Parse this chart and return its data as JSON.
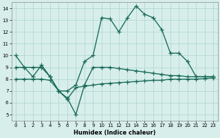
{
  "xlabel": "Humidex (Indice chaleur)",
  "xlim": [
    -0.5,
    23.5
  ],
  "ylim": [
    4.5,
    14.5
  ],
  "xticks": [
    0,
    1,
    2,
    3,
    4,
    5,
    6,
    7,
    8,
    9,
    10,
    11,
    12,
    13,
    14,
    15,
    16,
    17,
    18,
    19,
    20,
    21,
    22,
    23
  ],
  "yticks": [
    5,
    6,
    7,
    8,
    9,
    10,
    11,
    12,
    13,
    14
  ],
  "background_color": "#d7eeeb",
  "grid_color": "#b2d8d2",
  "line_color": "#1a6b5a",
  "curve1_y": [
    10.0,
    9.0,
    8.2,
    9.2,
    8.2,
    7.0,
    7.0,
    7.5,
    9.5,
    10.0,
    13.2,
    13.1,
    12.0,
    13.2,
    14.2,
    13.5,
    13.2,
    12.2,
    10.2,
    10.2,
    9.5,
    8.2,
    8.2,
    8.2
  ],
  "curve2_y": [
    9.0,
    9.0,
    9.0,
    9.0,
    8.2,
    7.0,
    6.4,
    5.0,
    7.5,
    9.0,
    9.0,
    9.0,
    8.9,
    8.8,
    8.7,
    8.6,
    8.5,
    8.4,
    8.3,
    8.3,
    8.2,
    8.2,
    8.2,
    8.2
  ],
  "curve3_y": [
    8.0,
    8.0,
    8.0,
    8.0,
    7.9,
    7.0,
    6.3,
    7.3,
    7.4,
    7.5,
    7.6,
    7.65,
    7.7,
    7.75,
    7.8,
    7.85,
    7.9,
    7.9,
    8.0,
    8.0,
    8.0,
    8.0,
    8.05,
    8.1
  ],
  "markersize": 4,
  "linewidth": 1.0
}
